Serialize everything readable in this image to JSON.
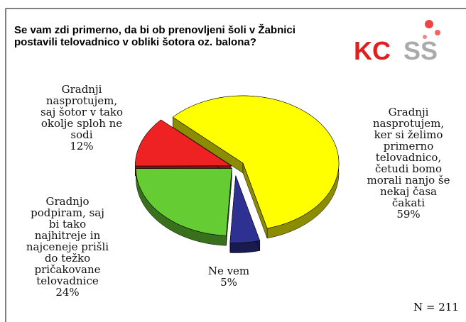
{
  "chart_data": {
    "type": "pie",
    "title": "Se vam zdi primerno, da bi ob prenovljeni šoli v Žabnici postavili telovadnico v obliki šotora oz. balona?",
    "logo_left": "KC",
    "logo_right": "SS",
    "categories": [
      "Gradnji\nnasprotujem,\nker si želimo\nprimerno\ntelovadnico,\nčetudi bomo\nmorali nanjo še\nnekaj časa\nčakati",
      "Ne vem",
      "Gradnjo\npodpiram, saj\nbi tako\nnajhitreje in\nnajceneje prišli\ndo težko\npričakovane\ntelovadnice",
      "Gradnji\nnasprotujem,\nsaj šotor v tako\nokolje sploh ne\nsodi"
    ],
    "values": [
      59,
      5,
      24,
      12
    ],
    "value_labels": [
      "59%",
      "5%",
      "24%",
      "12%"
    ],
    "colors": [
      "#ffff00",
      "#2e3192",
      "#66cc33",
      "#ee2222"
    ],
    "annotation": "N = 211"
  }
}
